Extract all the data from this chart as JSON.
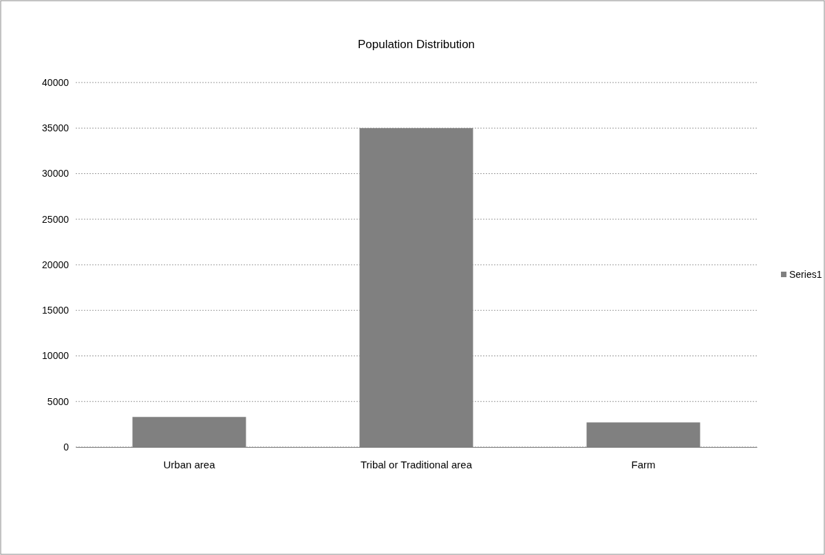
{
  "chart_data": {
    "type": "bar",
    "title": "Population Distribution",
    "categories": [
      "Urban area",
      "Tribal or Traditional area",
      "Farm"
    ],
    "series": [
      {
        "name": "Series1",
        "color": "#808080",
        "values": [
          3300,
          35000,
          2700
        ]
      }
    ],
    "ylim": [
      0,
      40000
    ],
    "yticks": [
      0,
      5000,
      10000,
      15000,
      20000,
      25000,
      30000,
      35000,
      40000
    ],
    "grid": "y",
    "legend": "right"
  }
}
